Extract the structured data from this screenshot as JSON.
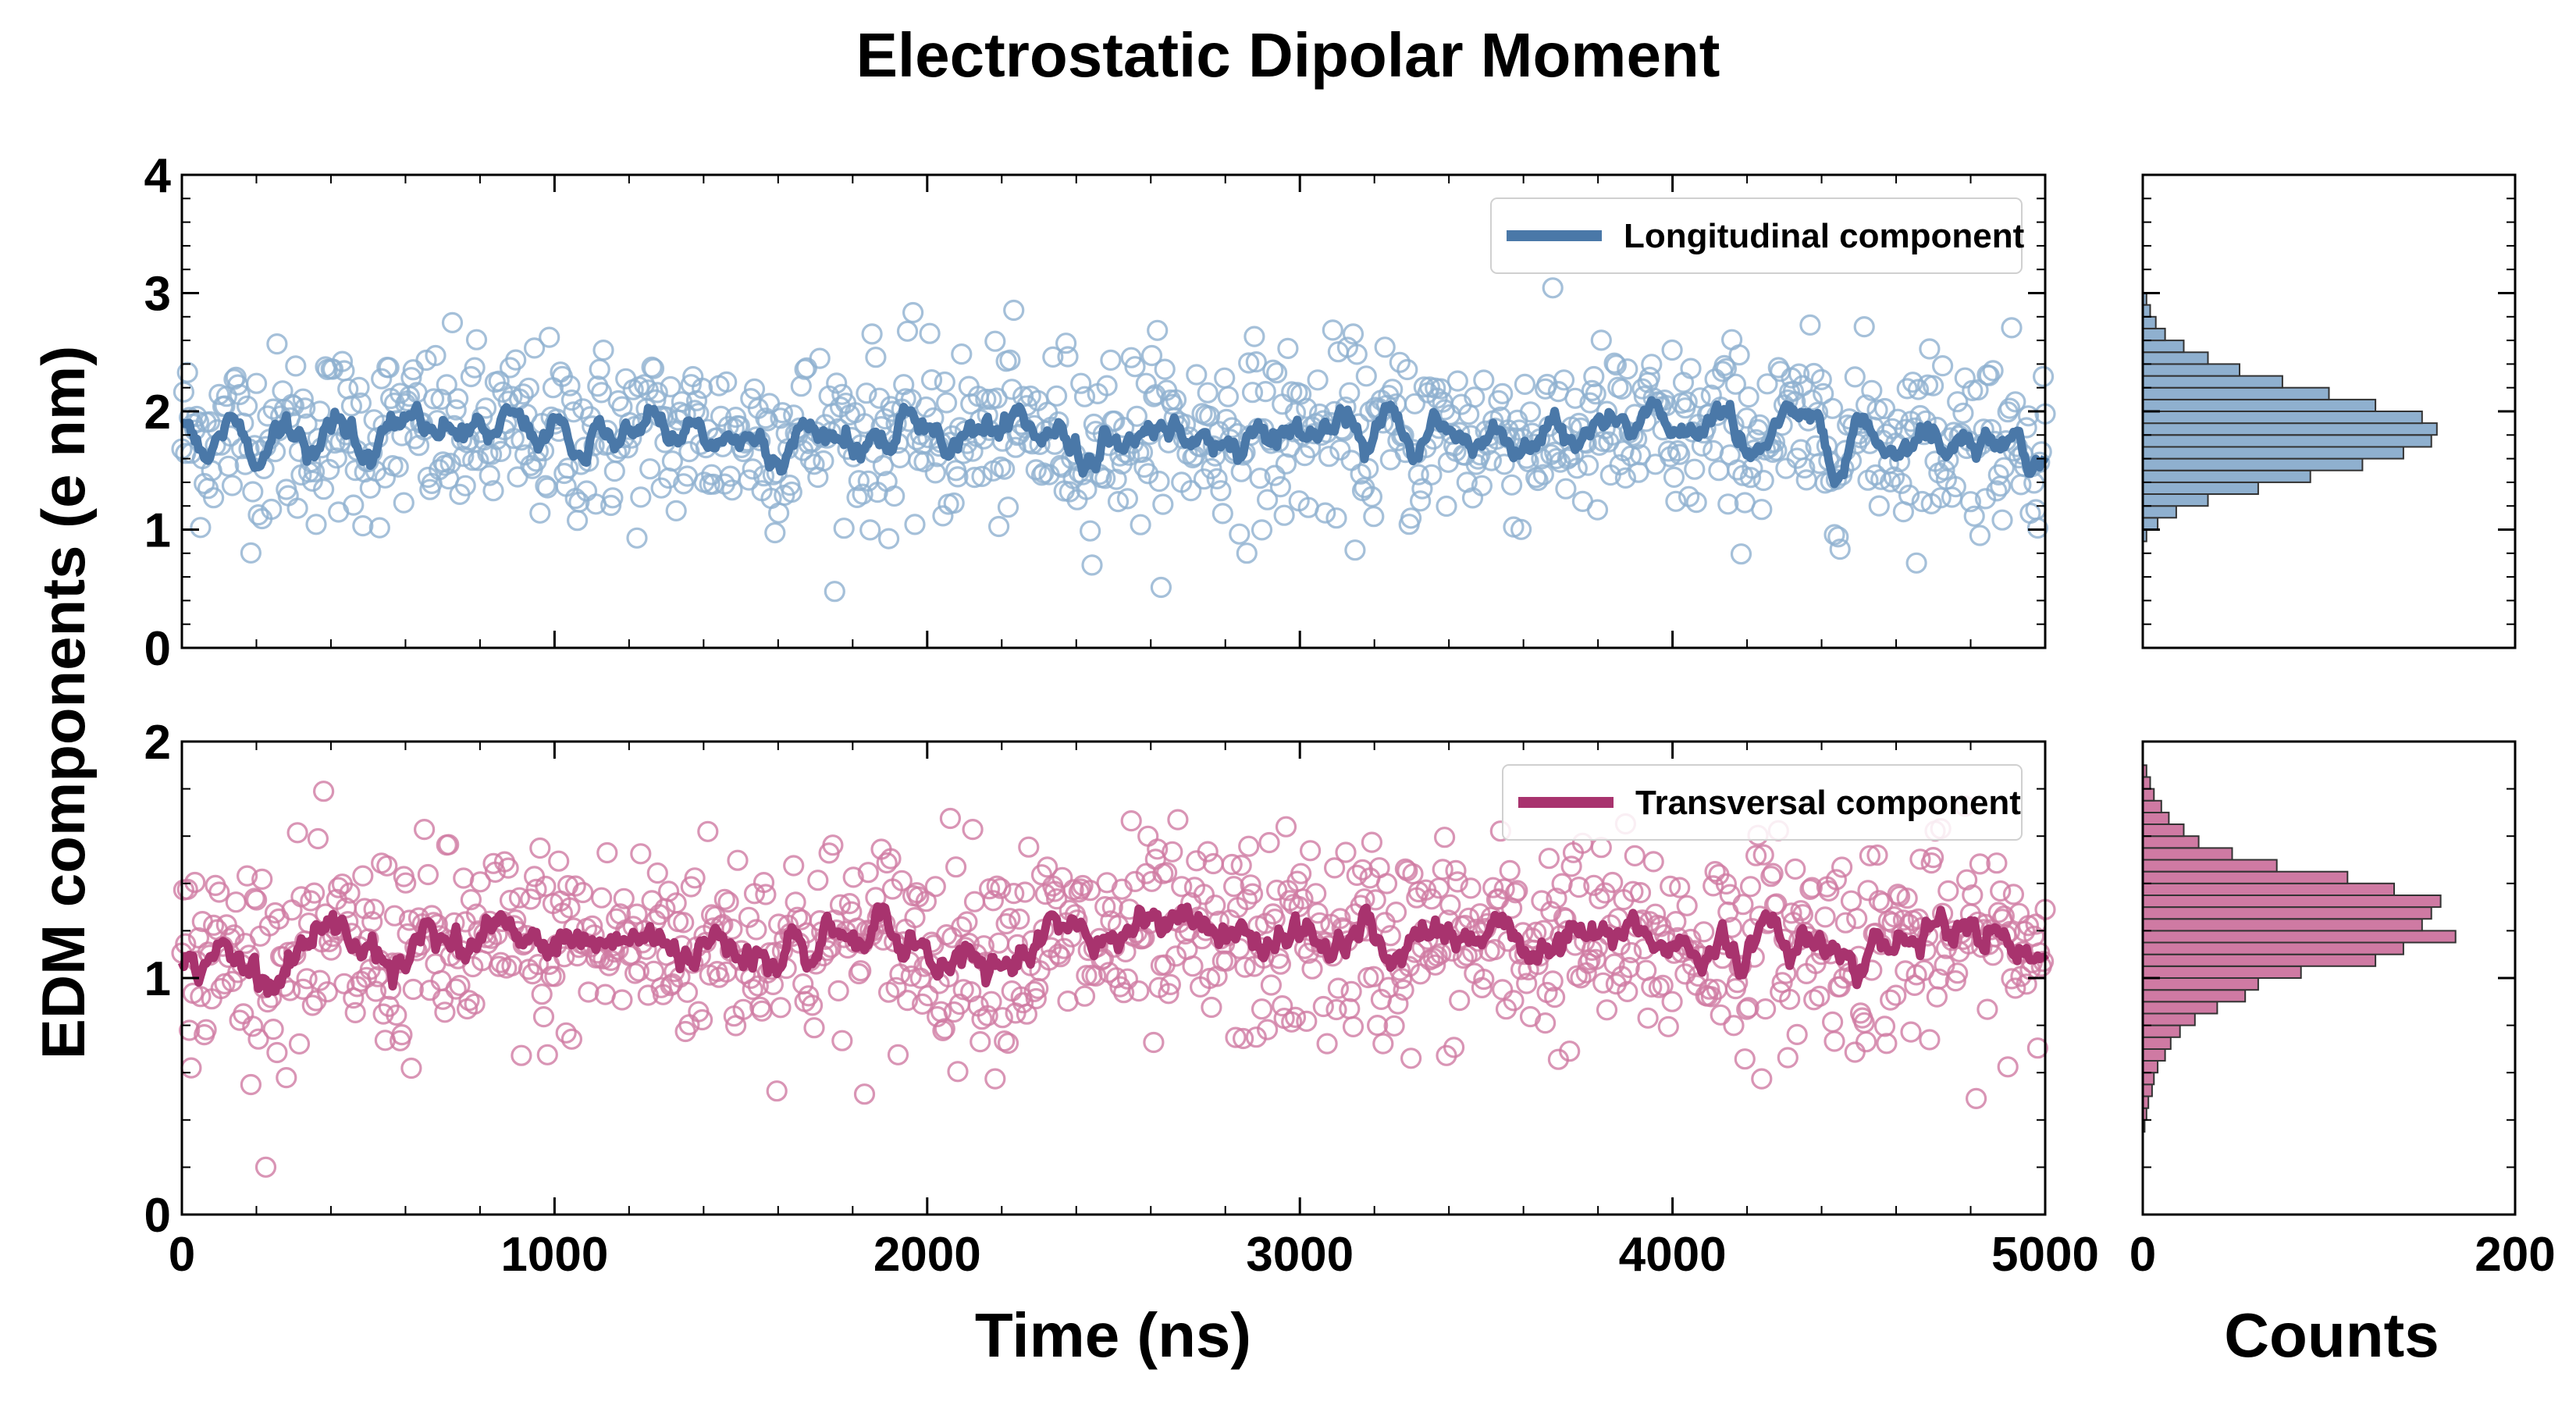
{
  "chart_data": {
    "type": "scatter",
    "title": "Electrostatic Dipolar Moment",
    "ylabel": "EDM components (e nm)",
    "panels": [
      {
        "name": "longitudinal",
        "legend": "Longitudinal component",
        "color": "#4a78a8",
        "marker_color": "#8fb0cf",
        "xlim": [
          0,
          5000
        ],
        "ylim": [
          0,
          4
        ],
        "xticks": [
          0,
          1000,
          2000,
          3000,
          4000,
          5000
        ],
        "yticks": [
          0,
          1,
          2,
          3,
          4
        ],
        "n_points": 1000,
        "mean": 1.8,
        "spread": 0.38,
        "hist_bins_center": [
          0.95,
          1.05,
          1.15,
          1.25,
          1.35,
          1.45,
          1.55,
          1.65,
          1.75,
          1.85,
          1.95,
          2.05,
          2.15,
          2.25,
          2.35,
          2.45,
          2.55,
          2.65,
          2.75,
          2.85,
          2.95
        ],
        "hist_counts": [
          2,
          8,
          18,
          35,
          62,
          90,
          118,
          140,
          155,
          158,
          150,
          125,
          100,
          75,
          52,
          35,
          22,
          12,
          7,
          4,
          2
        ]
      },
      {
        "name": "transversal",
        "legend": "Transversal component",
        "color": "#a8336e",
        "marker_color": "#cf7aa3",
        "xlim": [
          0,
          5000
        ],
        "ylim": [
          0,
          2
        ],
        "xticks": [
          0,
          1000,
          2000,
          3000,
          4000,
          5000
        ],
        "xtick_labels": [
          "0",
          "1000",
          "2000",
          "3000",
          "4000",
          "5000"
        ],
        "yticks": [
          0,
          1,
          2
        ],
        "n_points": 1000,
        "mean": 1.15,
        "spread": 0.22,
        "hist_bins_center": [
          0.375,
          0.425,
          0.475,
          0.525,
          0.575,
          0.625,
          0.675,
          0.725,
          0.775,
          0.825,
          0.875,
          0.925,
          0.975,
          1.025,
          1.075,
          1.125,
          1.175,
          1.225,
          1.275,
          1.325,
          1.375,
          1.425,
          1.475,
          1.525,
          1.575,
          1.625,
          1.675,
          1.725,
          1.775,
          1.825,
          1.875
        ],
        "hist_counts": [
          1,
          2,
          3,
          5,
          6,
          8,
          12,
          15,
          20,
          28,
          40,
          55,
          62,
          85,
          125,
          140,
          168,
          150,
          155,
          160,
          135,
          110,
          72,
          48,
          30,
          22,
          14,
          10,
          6,
          4,
          2
        ]
      }
    ],
    "xlabel": "Time (ns)",
    "hist_xlabel": "Counts",
    "hist_xlim": [
      0,
      200
    ],
    "hist_xticks": [
      0,
      200
    ]
  }
}
